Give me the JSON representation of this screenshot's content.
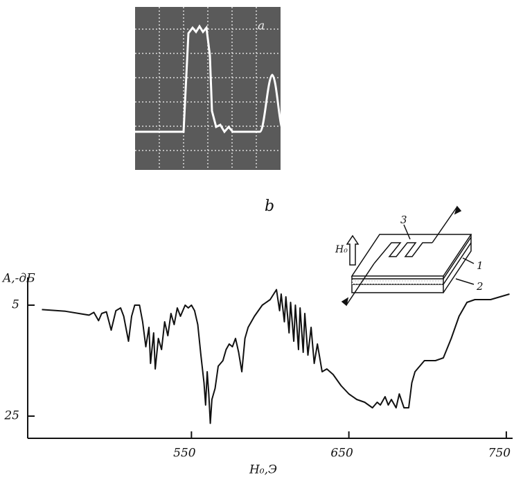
{
  "oscillogram_label": "a",
  "panel_label": "b",
  "inset": {
    "field_label": "H₀",
    "layer_labels": [
      "3",
      "1",
      "2"
    ]
  },
  "chart_data": {
    "type": "line",
    "ylabel": "A,-дБ",
    "xlabel": "H₀,Э",
    "x": [
      455,
      470,
      485,
      488,
      491,
      493,
      496,
      499,
      502,
      505,
      507,
      510,
      512,
      514,
      517,
      519,
      521,
      523,
      524,
      526,
      527,
      529,
      531,
      533,
      535,
      537,
      539,
      541,
      543,
      546,
      548,
      550,
      552,
      554,
      556,
      558,
      559,
      560,
      561,
      562,
      563,
      565,
      567,
      570,
      572,
      574,
      576,
      578,
      580,
      582,
      584,
      586,
      590,
      595,
      600,
      604,
      606,
      607,
      609,
      610,
      612,
      613,
      615,
      616,
      618,
      619,
      621,
      622,
      624,
      626,
      628,
      630,
      633,
      636,
      640,
      645,
      650,
      655,
      660,
      665,
      668,
      670,
      673,
      675,
      677,
      680,
      682,
      685,
      688,
      690,
      692,
      695,
      698,
      705,
      710,
      715,
      720,
      725,
      730,
      740,
      746,
      752
    ],
    "values": [
      5.8,
      6.1,
      6.8,
      6.3,
      7.8,
      6.5,
      6.2,
      9.5,
      6.0,
      5.5,
      7.0,
      11.5,
      7.0,
      5.0,
      5.0,
      8.0,
      12.5,
      9.0,
      15.5,
      10.0,
      16.5,
      11.0,
      13.0,
      8.0,
      10.5,
      6.5,
      8.5,
      5.5,
      7.0,
      5.0,
      5.5,
      5.0,
      6.0,
      8.5,
      14.0,
      19.0,
      23.0,
      17.0,
      21.0,
      26.3,
      22.0,
      20.0,
      16.0,
      15.0,
      13.0,
      12.0,
      12.5,
      11.0,
      13.5,
      17.0,
      11.0,
      9.0,
      7.0,
      5.0,
      4.0,
      2.2,
      6.0,
      3.0,
      8.0,
      3.5,
      10.0,
      4.5,
      11.5,
      5.0,
      13.0,
      5.5,
      13.5,
      6.5,
      14.0,
      9.0,
      15.5,
      12.0,
      17.0,
      16.5,
      17.5,
      19.5,
      21.0,
      22.0,
      22.5,
      23.5,
      22.5,
      23.0,
      21.5,
      23.0,
      22.0,
      23.5,
      21.0,
      23.5,
      23.5,
      19.0,
      17.0,
      16.0,
      15.0,
      15.0,
      14.5,
      11.0,
      7.0,
      4.5,
      4.0,
      4.0,
      3.5,
      3.0
    ],
    "color": "#111111",
    "xlim": [
      446,
      754
    ],
    "ylim": [
      29,
      0
    ],
    "xticks": [
      550,
      650,
      750
    ],
    "yticks": [
      5,
      25
    ]
  }
}
